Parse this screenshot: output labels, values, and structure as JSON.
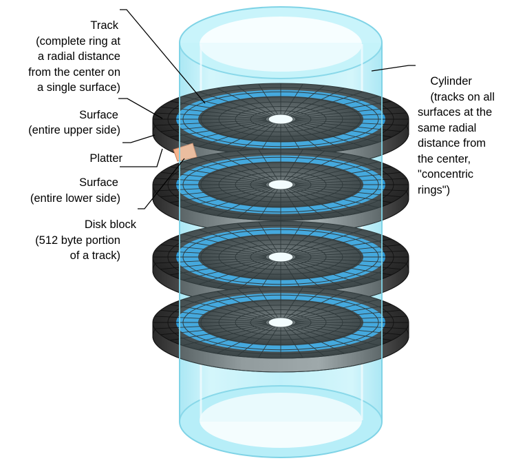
{
  "labels": {
    "track": "Track",
    "track_desc": "(complete ring at\na radial distance\nfrom the center on\na single surface)",
    "surface_upper": "Surface",
    "surface_upper_desc": "(entire upper side)",
    "platter": "Platter",
    "surface_lower": "Surface",
    "surface_lower_desc": "(entire lower side)",
    "disk_block": "Disk block",
    "disk_block_desc": "(512 byte portion\nof a track)",
    "cylinder": "Cylinder",
    "cylinder_desc": "(tracks on all\nsurfaces at the\nsame radial\ndistance from\nthe center,\n\"concentric\nrings\")"
  },
  "colors": {
    "cylinder_fill": "#b7eef8",
    "cylinder_stroke": "#7fd3e6",
    "platter_dark": "#2e2e2e",
    "platter_mid": "#5a5a5a",
    "track_blue": "#2d9ad8",
    "block_highlight": "#f6b38c",
    "leader_line": "#000000"
  },
  "diagram": {
    "platter_count": 4,
    "sectors_per_track": 36
  }
}
